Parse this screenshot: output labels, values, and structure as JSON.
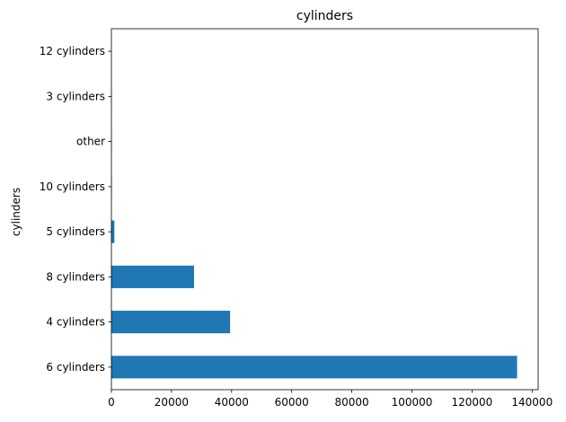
{
  "chart_data": {
    "type": "bar",
    "orientation": "horizontal",
    "title": "cylinders",
    "xlabel": "",
    "ylabel": "cylinders",
    "categories": [
      "6 cylinders",
      "4 cylinders",
      "8 cylinders",
      "5 cylinders",
      "10 cylinders",
      "other",
      "3 cylinders",
      "12 cylinders"
    ],
    "values": [
      135000,
      39500,
      27500,
      1000,
      150,
      100,
      80,
      30
    ],
    "xlim": [
      0,
      142000
    ],
    "xticks": [
      0,
      20000,
      40000,
      60000,
      80000,
      100000,
      120000,
      140000
    ],
    "xtick_labels": [
      "0",
      "20000",
      "40000",
      "60000",
      "80000",
      "100000",
      "120000",
      "140000"
    ],
    "bar_color": "#1f77b4",
    "grid": false,
    "legend": "none"
  }
}
